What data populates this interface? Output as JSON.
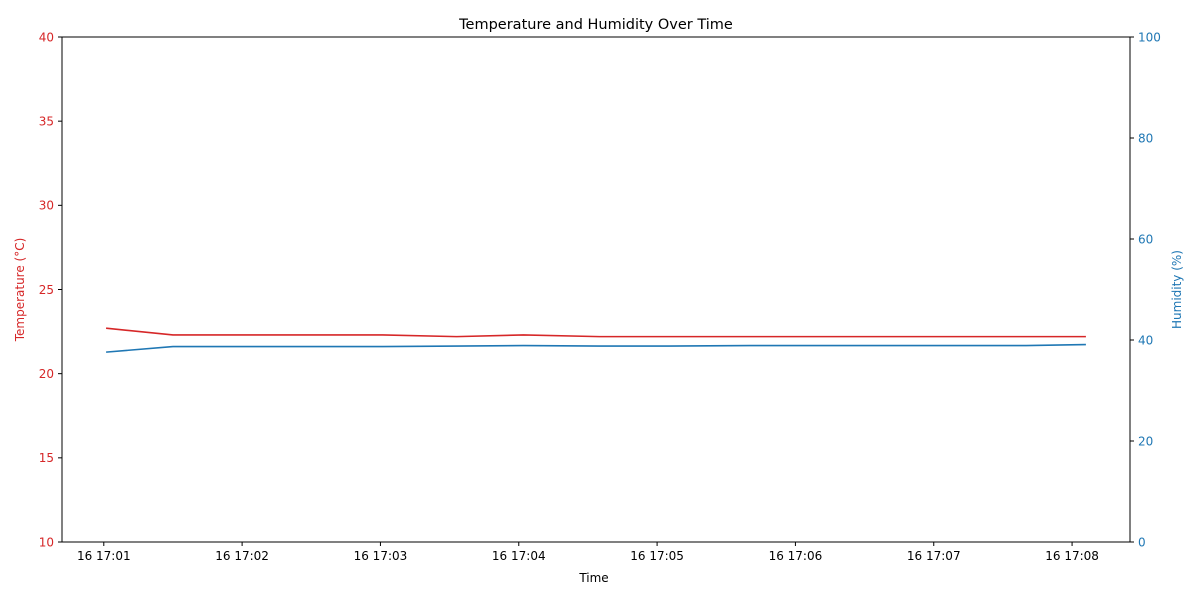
{
  "chart_data": {
    "type": "line",
    "title": "Temperature and Humidity Over Time",
    "xlabel": "Time",
    "x_ticks": [
      "16 17:01",
      "16 17:02",
      "16 17:03",
      "16 17:04",
      "16 17:05",
      "16 17:06",
      "16 17:07",
      "16 17:08"
    ],
    "x_range_min": [
      17.003,
      17.135
    ],
    "y_left": {
      "label": "Temperature (°C)",
      "ylim": [
        10,
        40
      ],
      "ticks": [
        "10",
        "15",
        "20",
        "25",
        "30",
        "35",
        "40"
      ],
      "color": "#d62728"
    },
    "y_right": {
      "label": "Humidity (%)",
      "ylim": [
        0,
        100
      ],
      "ticks": [
        "0",
        "20",
        "40",
        "60",
        "80",
        "100"
      ],
      "color": "#1f77b4"
    },
    "series": [
      {
        "axis": "left",
        "color": "#d62728",
        "x": [
          "17:01:01",
          "17:01:30",
          "17:02:00",
          "17:02:30",
          "17:03:01",
          "17:03:33",
          "17:04:02",
          "17:04:35",
          "17:05:05",
          "17:05:40",
          "17:06:10",
          "17:06:40",
          "17:07:10",
          "17:07:40",
          "17:08:06"
        ],
        "values": [
          22.7,
          22.3,
          22.3,
          22.3,
          22.3,
          22.2,
          22.3,
          22.2,
          22.2,
          22.2,
          22.2,
          22.2,
          22.2,
          22.2,
          22.2
        ]
      },
      {
        "axis": "right",
        "color": "#1f77b4",
        "x": [
          "17:01:01",
          "17:01:30",
          "17:02:00",
          "17:02:30",
          "17:03:01",
          "17:03:33",
          "17:04:02",
          "17:04:35",
          "17:05:05",
          "17:05:40",
          "17:06:10",
          "17:06:40",
          "17:07:10",
          "17:07:40",
          "17:08:06"
        ],
        "values": [
          37.6,
          38.7,
          38.7,
          38.7,
          38.7,
          38.8,
          38.9,
          38.8,
          38.8,
          38.9,
          38.9,
          38.9,
          38.9,
          38.9,
          39.1
        ]
      }
    ],
    "grid": false,
    "legend": "none"
  }
}
